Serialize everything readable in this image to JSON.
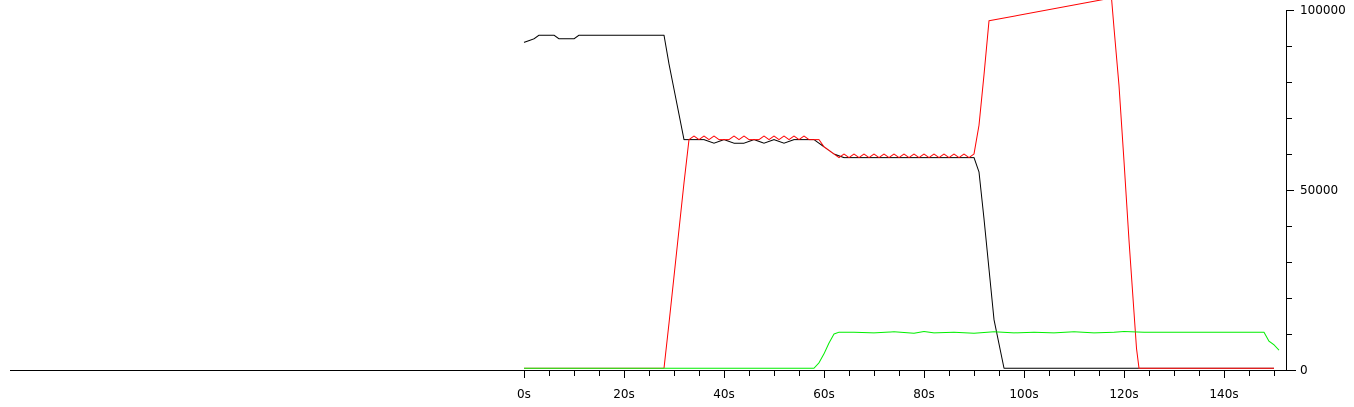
{
  "chart_data": {
    "type": "line",
    "title": "",
    "xlabel": "",
    "ylabel": "",
    "xlim": [
      0,
      150
    ],
    "ylim": [
      0,
      100000
    ],
    "grid": false,
    "legend": "none",
    "x_ticks": [
      {
        "value": 0,
        "label": "0s"
      },
      {
        "value": 20,
        "label": "20s"
      },
      {
        "value": 40,
        "label": "40s"
      },
      {
        "value": 60,
        "label": "60s"
      },
      {
        "value": 80,
        "label": "80s"
      },
      {
        "value": 100,
        "label": "100s"
      },
      {
        "value": 120,
        "label": "120s"
      },
      {
        "value": 140,
        "label": "140s"
      }
    ],
    "y_ticks": [
      {
        "value": 0,
        "label": "0"
      },
      {
        "value": 50000,
        "label": "50000"
      },
      {
        "value": 100000,
        "label": "100000"
      }
    ],
    "series": [
      {
        "color": "#000000",
        "x": [
          0,
          1,
          2,
          3,
          4,
          6,
          7,
          8,
          10,
          11,
          12,
          14,
          20,
          28,
          29,
          30,
          31,
          32,
          34,
          36,
          38,
          40,
          42,
          44,
          46,
          48,
          50,
          52,
          54,
          56,
          58,
          60,
          62,
          64,
          66,
          68,
          70,
          72,
          74,
          76,
          78,
          80,
          82,
          84,
          86,
          88,
          89,
          90,
          91,
          92,
          93,
          94,
          96,
          100,
          110,
          120,
          125,
          130,
          140,
          150
        ],
        "y": [
          91000,
          91500,
          92000,
          93000,
          93000,
          93000,
          92000,
          92000,
          92000,
          93000,
          93000,
          93000,
          93000,
          93000,
          85000,
          78000,
          71000,
          64000,
          64000,
          64000,
          63000,
          64000,
          63000,
          63000,
          64000,
          63000,
          64000,
          63000,
          64000,
          64000,
          64000,
          62000,
          60000,
          59000,
          59000,
          59000,
          59000,
          59000,
          59000,
          59000,
          59000,
          59000,
          59000,
          59000,
          59000,
          59000,
          59000,
          59000,
          55000,
          42000,
          28000,
          14000,
          500,
          500,
          500,
          500,
          500,
          500,
          500,
          500
        ]
      },
      {
        "color": "#ff0000",
        "x": [
          0,
          10,
          20,
          28,
          29,
          30,
          31,
          32,
          33,
          34,
          35,
          36,
          37,
          38,
          39,
          40,
          41,
          42,
          43,
          44,
          45,
          46,
          47,
          48,
          49,
          50,
          51,
          52,
          53,
          54,
          55,
          56,
          57,
          58,
          59,
          60,
          61,
          62,
          63,
          64,
          65,
          66,
          67,
          68,
          69,
          70,
          71,
          72,
          73,
          74,
          75,
          76,
          77,
          78,
          79,
          80,
          81,
          82,
          83,
          84,
          85,
          86,
          87,
          88,
          89,
          90,
          91,
          92,
          93,
          117.5,
          118,
          119,
          120,
          121,
          122,
          122.5,
          123,
          125,
          130,
          140,
          150
        ],
        "y": [
          500,
          500,
          500,
          500,
          13000,
          26000,
          39000,
          52000,
          64000,
          65000,
          64000,
          65000,
          64000,
          65000,
          64000,
          64000,
          64000,
          65000,
          64000,
          65000,
          64000,
          64000,
          64000,
          65000,
          64000,
          65000,
          64000,
          65000,
          64000,
          65000,
          64000,
          65000,
          64000,
          64000,
          64000,
          62000,
          61000,
          60000,
          59000,
          60000,
          59000,
          60000,
          59000,
          60000,
          59000,
          60000,
          59000,
          60000,
          59000,
          60000,
          59000,
          60000,
          59000,
          60000,
          59000,
          60000,
          59000,
          60000,
          59000,
          60000,
          59000,
          60000,
          59000,
          60000,
          59000,
          60000,
          68000,
          82000,
          97000,
          100000,
          95000,
          79000,
          58000,
          36000,
          16000,
          6000,
          500,
          500,
          500,
          500,
          500
        ]
      },
      {
        "color": "#00ee00",
        "x": [
          0,
          20,
          40,
          58,
          59,
          60,
          61,
          62,
          63,
          66,
          70,
          74,
          78,
          80,
          82,
          86,
          90,
          94,
          98,
          102,
          106,
          110,
          114,
          118,
          120,
          124,
          130,
          136,
          140,
          148,
          149,
          150,
          151
        ],
        "y": [
          500,
          500,
          500,
          500,
          2000,
          4500,
          7500,
          10000,
          10500,
          10500,
          10300,
          10600,
          10200,
          10700,
          10300,
          10500,
          10200,
          10600,
          10300,
          10500,
          10300,
          10600,
          10300,
          10500,
          10700,
          10500,
          10500,
          10500,
          10500,
          10500,
          8000,
          7000,
          5500
        ]
      }
    ]
  }
}
